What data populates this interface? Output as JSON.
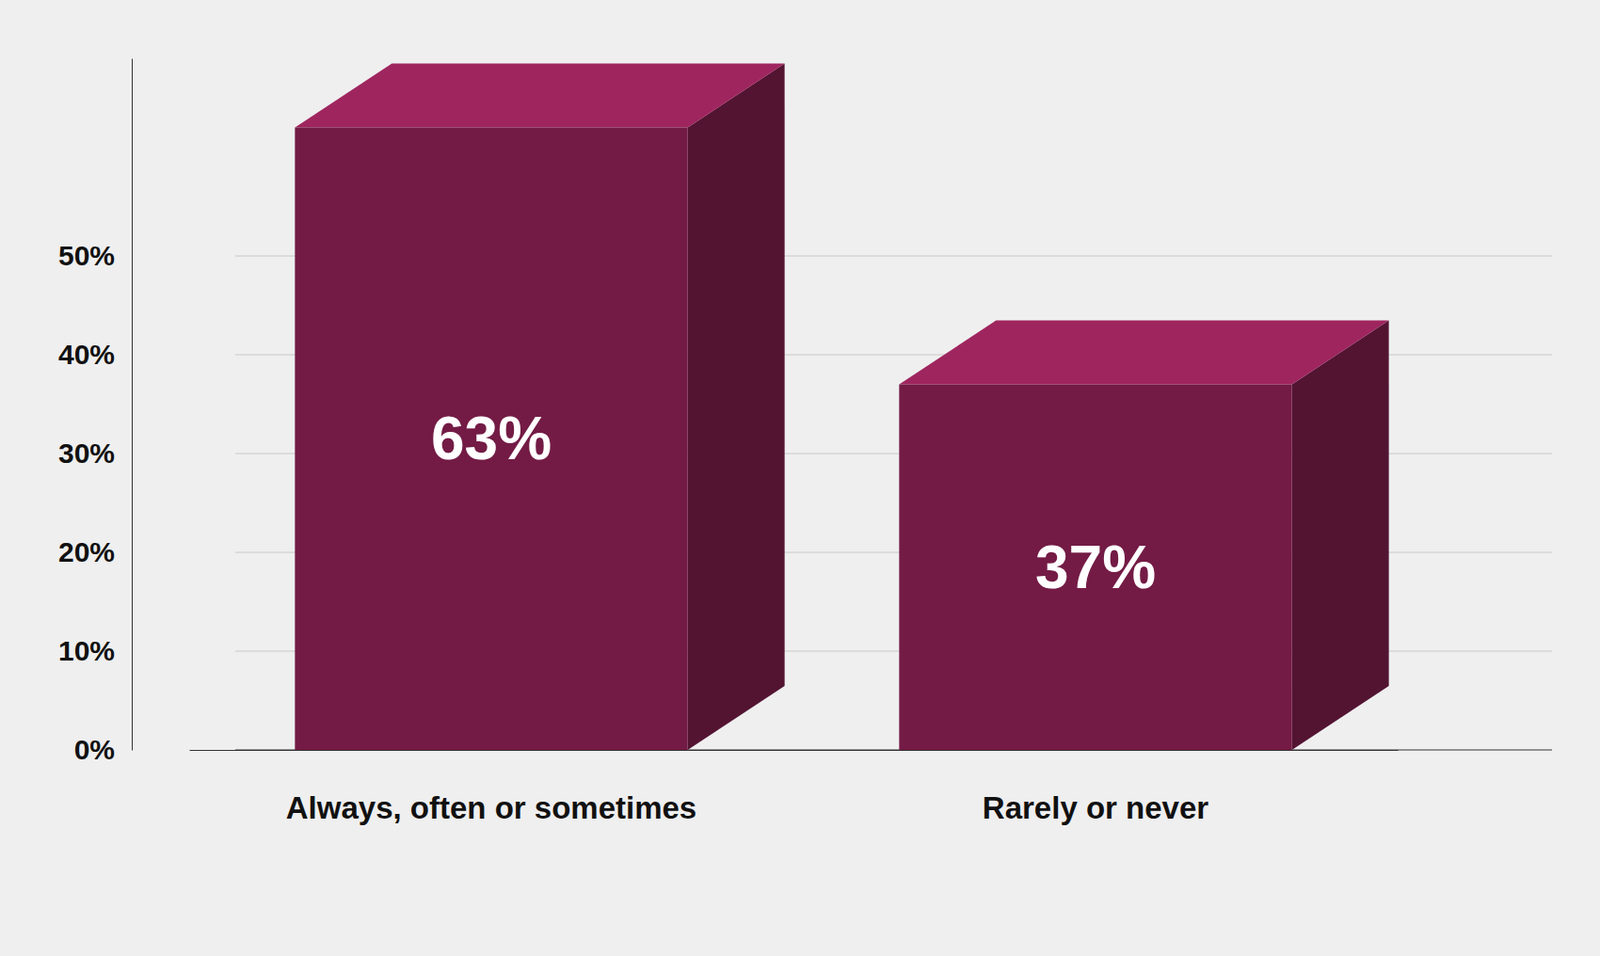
{
  "chart_data": {
    "type": "bar",
    "categories": [
      "Always, often or sometimes",
      "Rarely or never"
    ],
    "values": [
      63,
      37
    ],
    "value_labels": [
      "63%",
      "37%"
    ],
    "color": "#731b45",
    "ylim": [
      0,
      70
    ],
    "yticks": [
      {
        "value": 0,
        "label": "0%"
      },
      {
        "value": 10,
        "label": "10%"
      },
      {
        "value": 20,
        "label": "20%"
      },
      {
        "value": 30,
        "label": "30%"
      },
      {
        "value": 40,
        "label": "40%"
      },
      {
        "value": 50,
        "label": "50%"
      }
    ],
    "grid": true,
    "data_labels": true
  }
}
